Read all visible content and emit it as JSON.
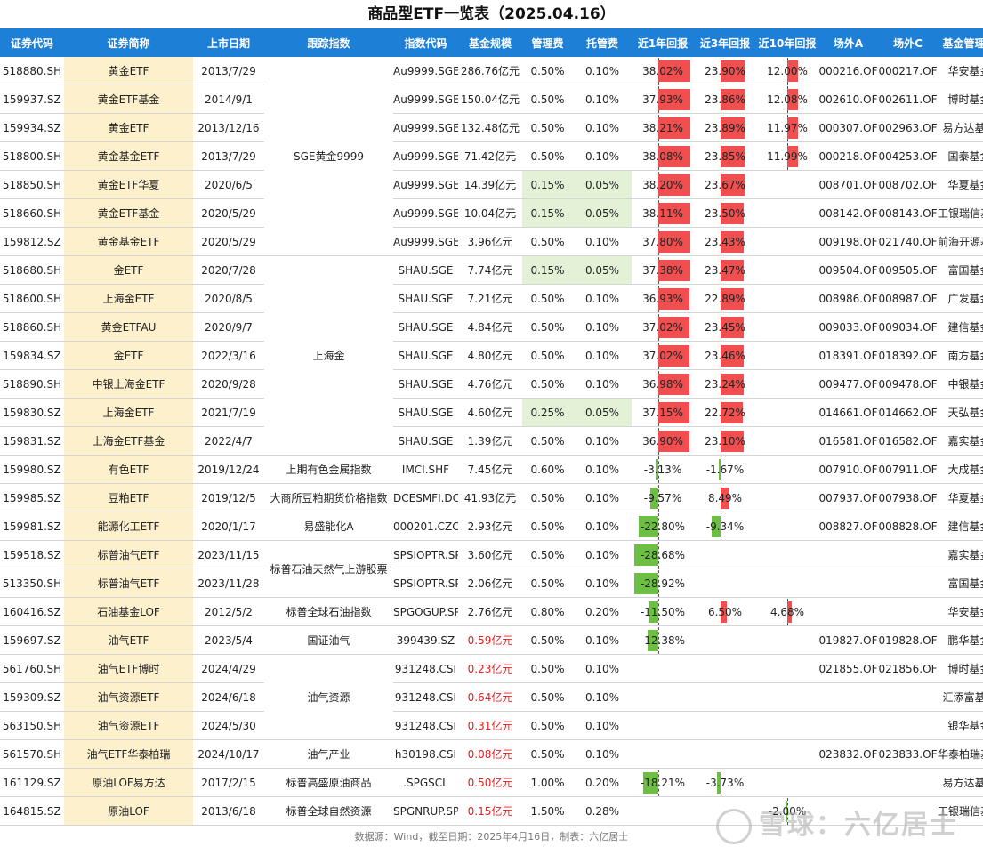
{
  "title": "商品型ETF一览表（2025.04.16）",
  "footer": "数据源：Wind，截至日期：2025年4月16日，制表：六亿居士",
  "watermark": "雪球：六亿居士",
  "colors": {
    "header_bg": "#1e7fd6",
    "name_bg": "#fdf0cc",
    "fee_highlight": "#e3f2d6",
    "pos_bar": "#f14f4f",
    "neg_bar": "#6cbf43",
    "low_size_text": "#e02020"
  },
  "chart_data": {
    "type": "table",
    "columns": [
      "证券代码",
      "证券简称",
      "上市日期",
      "跟踪指数",
      "指数代码",
      "基金规模",
      "管理费",
      "托管费",
      "近1年回报",
      "近3年回报",
      "近10年回报",
      "场外A",
      "场外C",
      "基金管理人"
    ],
    "index_groups": [
      {
        "label": "SGE黄金9999",
        "rows": 7
      },
      {
        "label": "上海金",
        "rows": 7
      },
      {
        "label": "上期有色金属指数",
        "rows": 1
      },
      {
        "label": "大商所豆粕期货价格指数",
        "rows": 1
      },
      {
        "label": "易盛能化A",
        "rows": 1
      },
      {
        "label": "标普石油天然气上游股票",
        "rows": 2
      },
      {
        "label": "标普全球石油指数",
        "rows": 1
      },
      {
        "label": "国证油气",
        "rows": 1
      },
      {
        "label": "油气资源",
        "rows": 3
      },
      {
        "label": "油气产业",
        "rows": 1
      },
      {
        "label": "标普高盛原油商品",
        "rows": 1
      },
      {
        "label": "标普全球自然资源",
        "rows": 1
      }
    ],
    "rows": [
      {
        "code": "518880.SH",
        "name": "黄金ETF",
        "date": "2013/7/29",
        "index_code": "Au9999.SGE",
        "size": "286.76亿元",
        "mgmt": "0.50%",
        "cust": "0.10%",
        "r1": "38.02%",
        "r3": "23.90%",
        "r10": "12.00%",
        "a": "000216.OF",
        "c": "000217.OF",
        "mgr": "华安基金"
      },
      {
        "code": "159937.SZ",
        "name": "黄金ETF基金",
        "date": "2014/9/1",
        "index_code": "Au9999.SGE",
        "size": "150.04亿元",
        "mgmt": "0.50%",
        "cust": "0.10%",
        "r1": "37.93%",
        "r3": "23.86%",
        "r10": "12.08%",
        "a": "002610.OF",
        "c": "002611.OF",
        "mgr": "博时基金"
      },
      {
        "code": "159934.SZ",
        "name": "黄金ETF",
        "date": "2013/12/16",
        "index_code": "Au9999.SGE",
        "size": "132.48亿元",
        "mgmt": "0.50%",
        "cust": "0.10%",
        "r1": "38.21%",
        "r3": "23.89%",
        "r10": "11.97%",
        "a": "000307.OF",
        "c": "002963.OF",
        "mgr": "易方达基金"
      },
      {
        "code": "518800.SH",
        "name": "黄金基金ETF",
        "date": "2013/7/29",
        "index_code": "Au9999.SGE",
        "size": "71.42亿元",
        "mgmt": "0.50%",
        "cust": "0.10%",
        "r1": "38.08%",
        "r3": "23.85%",
        "r10": "11.99%",
        "a": "000218.OF",
        "c": "004253.OF",
        "mgr": "国泰基金"
      },
      {
        "code": "518850.SH",
        "name": "黄金ETF华夏",
        "date": "2020/6/5",
        "index_code": "Au9999.SGE",
        "size": "14.39亿元",
        "mgmt": "0.15%",
        "cust": "0.05%",
        "r1": "38.20%",
        "r3": "23.67%",
        "r10": "",
        "a": "008701.OF",
        "c": "008702.OF",
        "mgr": "华夏基金"
      },
      {
        "code": "518660.SH",
        "name": "黄金ETF基金",
        "date": "2020/5/29",
        "index_code": "Au9999.SGE",
        "size": "10.04亿元",
        "mgmt": "0.15%",
        "cust": "0.05%",
        "r1": "38.11%",
        "r3": "23.50%",
        "r10": "",
        "a": "008142.OF",
        "c": "008143.OF",
        "mgr": "工银瑞信基金"
      },
      {
        "code": "159812.SZ",
        "name": "黄金基金ETF",
        "date": "2020/5/29",
        "index_code": "Au9999.SGE",
        "size": "3.96亿元",
        "mgmt": "0.50%",
        "cust": "0.10%",
        "r1": "37.80%",
        "r3": "23.43%",
        "r10": "",
        "a": "009198.OF",
        "c": "021740.OF",
        "mgr": "前海开源基金"
      },
      {
        "code": "518680.SH",
        "name": "金ETF",
        "date": "2020/7/28",
        "index_code": "SHAU.SGE",
        "size": "7.74亿元",
        "mgmt": "0.15%",
        "cust": "0.05%",
        "r1": "37.38%",
        "r3": "23.47%",
        "r10": "",
        "a": "009504.OF",
        "c": "009505.OF",
        "mgr": "富国基金"
      },
      {
        "code": "518600.SH",
        "name": "上海金ETF",
        "date": "2020/8/5",
        "index_code": "SHAU.SGE",
        "size": "7.21亿元",
        "mgmt": "0.50%",
        "cust": "0.10%",
        "r1": "36.93%",
        "r3": "22.89%",
        "r10": "",
        "a": "008986.OF",
        "c": "008987.OF",
        "mgr": "广发基金"
      },
      {
        "code": "518860.SH",
        "name": "黄金ETFAU",
        "date": "2020/9/7",
        "index_code": "SHAU.SGE",
        "size": "4.84亿元",
        "mgmt": "0.50%",
        "cust": "0.10%",
        "r1": "37.02%",
        "r3": "23.45%",
        "r10": "",
        "a": "009033.OF",
        "c": "009034.OF",
        "mgr": "建信基金"
      },
      {
        "code": "159834.SZ",
        "name": "金ETF",
        "date": "2022/3/16",
        "index_code": "SHAU.SGE",
        "size": "4.80亿元",
        "mgmt": "0.50%",
        "cust": "0.10%",
        "r1": "37.02%",
        "r3": "23.46%",
        "r10": "",
        "a": "018391.OF",
        "c": "018392.OF",
        "mgr": "南方基金"
      },
      {
        "code": "518890.SH",
        "name": "中银上海金ETF",
        "date": "2020/9/28",
        "index_code": "SHAU.SGE",
        "size": "4.76亿元",
        "mgmt": "0.50%",
        "cust": "0.10%",
        "r1": "36.98%",
        "r3": "23.24%",
        "r10": "",
        "a": "009477.OF",
        "c": "009478.OF",
        "mgr": "中银基金"
      },
      {
        "code": "159830.SZ",
        "name": "上海金ETF",
        "date": "2021/7/19",
        "index_code": "SHAU.SGE",
        "size": "4.60亿元",
        "mgmt": "0.25%",
        "cust": "0.05%",
        "r1": "37.15%",
        "r3": "22.72%",
        "r10": "",
        "a": "014661.OF",
        "c": "014662.OF",
        "mgr": "天弘基金"
      },
      {
        "code": "159831.SZ",
        "name": "上海金ETF基金",
        "date": "2022/4/7",
        "index_code": "SHAU.SGE",
        "size": "1.39亿元",
        "mgmt": "0.50%",
        "cust": "0.10%",
        "r1": "36.90%",
        "r3": "23.10%",
        "r10": "",
        "a": "016581.OF",
        "c": "016582.OF",
        "mgr": "嘉实基金"
      },
      {
        "code": "159980.SZ",
        "name": "有色ETF",
        "date": "2019/12/24",
        "index_code": "IMCI.SHF",
        "size": "7.45亿元",
        "mgmt": "0.60%",
        "cust": "0.10%",
        "r1": "-3.13%",
        "r3": "-1.67%",
        "r10": "",
        "a": "007910.OF",
        "c": "007911.OF",
        "mgr": "大成基金"
      },
      {
        "code": "159985.SZ",
        "name": "豆粕ETF",
        "date": "2019/12/5",
        "index_code": "DCESMFI.DCE",
        "size": "41.93亿元",
        "mgmt": "0.50%",
        "cust": "0.10%",
        "r1": "-9.57%",
        "r3": "8.49%",
        "r10": "",
        "a": "007937.OF",
        "c": "007938.OF",
        "mgr": "华夏基金"
      },
      {
        "code": "159981.SZ",
        "name": "能源化工ETF",
        "date": "2020/1/17",
        "index_code": "000201.CZC",
        "size": "2.93亿元",
        "mgmt": "0.50%",
        "cust": "0.10%",
        "r1": "-22.80%",
        "r3": "-9.34%",
        "r10": "",
        "a": "008827.OF",
        "c": "008828.OF",
        "mgr": "建信基金"
      },
      {
        "code": "159518.SZ",
        "name": "标普油气ETF",
        "date": "2023/11/15",
        "index_code": "SPSIOPTR.SPI",
        "size": "3.60亿元",
        "mgmt": "0.50%",
        "cust": "0.10%",
        "r1": "-28.68%",
        "r3": "",
        "r10": "",
        "a": "",
        "c": "",
        "mgr": "嘉实基金"
      },
      {
        "code": "513350.SH",
        "name": "标普油气ETF",
        "date": "2023/11/28",
        "index_code": "SPSIOPTR.SPI",
        "size": "2.06亿元",
        "mgmt": "0.50%",
        "cust": "0.10%",
        "r1": "-28.92%",
        "r3": "",
        "r10": "",
        "a": "",
        "c": "",
        "mgr": "富国基金"
      },
      {
        "code": "160416.SZ",
        "name": "石油基金LOF",
        "date": "2012/5/2",
        "index_code": "SPGOGUP.SPI",
        "size": "2.76亿元",
        "mgmt": "0.80%",
        "cust": "0.20%",
        "r1": "-11.50%",
        "r3": "6.50%",
        "r10": "4.68%",
        "a": "",
        "c": "",
        "mgr": "华安基金"
      },
      {
        "code": "159697.SZ",
        "name": "油气ETF",
        "date": "2023/5/4",
        "index_code": "399439.SZ",
        "size": "0.59亿元",
        "mgmt": "0.50%",
        "cust": "0.10%",
        "r1": "-12.38%",
        "r3": "",
        "r10": "",
        "a": "019827.OF",
        "c": "019828.OF",
        "mgr": "鹏华基金"
      },
      {
        "code": "561760.SH",
        "name": "油气ETF博时",
        "date": "2024/4/29",
        "index_code": "931248.CSI",
        "size": "0.23亿元",
        "mgmt": "0.50%",
        "cust": "0.10%",
        "r1": "",
        "r3": "",
        "r10": "",
        "a": "021855.OF",
        "c": "021856.OF",
        "mgr": "博时基金"
      },
      {
        "code": "159309.SZ",
        "name": "油气资源ETF",
        "date": "2024/6/18",
        "index_code": "931248.CSI",
        "size": "0.64亿元",
        "mgmt": "0.50%",
        "cust": "0.10%",
        "r1": "",
        "r3": "",
        "r10": "",
        "a": "",
        "c": "",
        "mgr": "汇添富基金"
      },
      {
        "code": "563150.SH",
        "name": "油气资源ETF",
        "date": "2024/5/30",
        "index_code": "931248.CSI",
        "size": "0.31亿元",
        "mgmt": "0.50%",
        "cust": "0.10%",
        "r1": "",
        "r3": "",
        "r10": "",
        "a": "",
        "c": "",
        "mgr": "银华基金"
      },
      {
        "code": "561570.SH",
        "name": "油气ETF华泰柏瑞",
        "date": "2024/10/17",
        "index_code": "h30198.CSI",
        "size": "0.08亿元",
        "mgmt": "0.50%",
        "cust": "0.10%",
        "r1": "",
        "r3": "",
        "r10": "",
        "a": "023832.OF",
        "c": "023833.OF",
        "mgr": "华泰柏瑞基金"
      },
      {
        "code": "161129.SZ",
        "name": "原油LOF易方达",
        "date": "2017/2/15",
        "index_code": ".SPGSCL",
        "size": "0.50亿元",
        "mgmt": "1.00%",
        "cust": "0.20%",
        "r1": "-18.21%",
        "r3": "-3.73%",
        "r10": "",
        "a": "",
        "c": "",
        "mgr": "易方达基金"
      },
      {
        "code": "164815.SZ",
        "name": "原油LOF",
        "date": "2013/6/18",
        "index_code": "SPGNRUP.SPI",
        "size": "0.15亿元",
        "mgmt": "1.50%",
        "cust": "0.28%",
        "r1": "",
        "r3": "",
        "r10": "-2.00%",
        "a": "",
        "c": "",
        "mgr": "工银瑞信基金"
      }
    ],
    "return_scale": {
      "r1": 40,
      "r3": 25,
      "r10": 13
    }
  }
}
